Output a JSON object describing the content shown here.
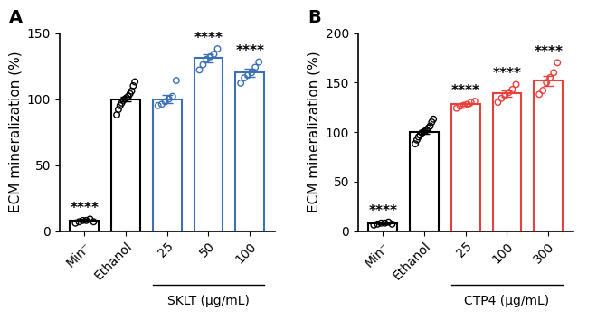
{
  "chart_data": [
    {
      "type": "bar",
      "panel": "A",
      "y_label": "ECM mineralization (%)",
      "categories": [
        "Min⁻",
        "Ethanol",
        "25",
        "50",
        "100"
      ],
      "values": [
        8,
        100,
        100,
        131,
        120
      ],
      "errors": [
        1,
        2,
        3,
        3,
        3
      ],
      "points": [
        [
          6,
          7,
          8,
          8,
          9,
          7
        ],
        [
          88,
          92,
          95,
          97,
          99,
          100,
          101,
          102,
          104,
          106,
          110,
          113
        ],
        [
          95,
          96,
          98,
          100,
          102,
          114
        ],
        [
          122,
          126,
          130,
          132,
          134,
          138
        ],
        [
          112,
          116,
          118,
          120,
          124,
          128
        ]
      ],
      "significance": [
        "****",
        null,
        null,
        "****",
        "****"
      ],
      "group": {
        "label": "SKLT (μg/mL)",
        "categories": [
          "25",
          "50",
          "100"
        ]
      },
      "colors": [
        "#000000",
        "#000000",
        "#3b6fb6",
        "#3b6fb6",
        "#3b6fb6"
      ],
      "ylim": [
        0,
        150
      ],
      "yticks": [
        0,
        50,
        100,
        150
      ]
    },
    {
      "type": "bar",
      "panel": "B",
      "y_label": "ECM mineralization (%)",
      "categories": [
        "Min⁻",
        "Ethanol",
        "25",
        "100",
        "300"
      ],
      "values": [
        8,
        100,
        128,
        139,
        152
      ],
      "errors": [
        1,
        2,
        1.5,
        3,
        5
      ],
      "points": [
        [
          6,
          7,
          8,
          8,
          9,
          7
        ],
        [
          88,
          92,
          95,
          97,
          99,
          100,
          101,
          102,
          104,
          106,
          110,
          113
        ],
        [
          124,
          126,
          127,
          128,
          130,
          131
        ],
        [
          130,
          134,
          137,
          140,
          143,
          148
        ],
        [
          138,
          142,
          150,
          155,
          160,
          170
        ]
      ],
      "significance": [
        "****",
        null,
        "****",
        "****",
        "****"
      ],
      "group": {
        "label": "CTP4 (μg/mL)",
        "categories": [
          "25",
          "100",
          "300"
        ]
      },
      "colors": [
        "#000000",
        "#000000",
        "#e8403a",
        "#e8403a",
        "#e8403a"
      ],
      "ylim": [
        0,
        200
      ],
      "yticks": [
        0,
        50,
        100,
        150,
        200
      ]
    }
  ]
}
